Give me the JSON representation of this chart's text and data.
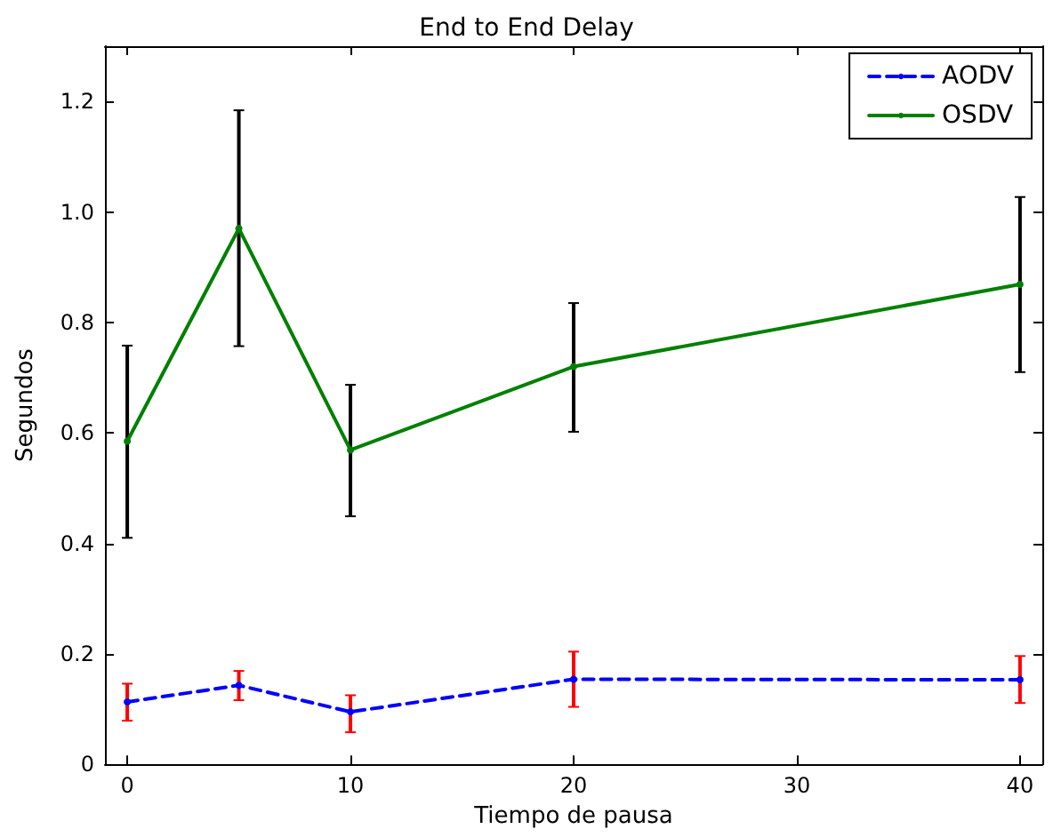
{
  "chart_data": {
    "type": "line",
    "title": "End to End Delay",
    "xlabel": "Tiempo de pausa",
    "ylabel": "Segundos",
    "x": [
      0,
      5,
      10,
      20,
      40
    ],
    "series": [
      {
        "name": "AODV",
        "color": "#0000ff",
        "line_style": "dashed",
        "values": [
          0.113,
          0.143,
          0.095,
          0.154,
          0.153
        ],
        "errors": [
          [
            0.079,
            0.146
          ],
          [
            0.116,
            0.169
          ],
          [
            0.058,
            0.125
          ],
          [
            0.104,
            0.204
          ],
          [
            0.111,
            0.196
          ]
        ]
      },
      {
        "name": "OSDV",
        "color": "#008000",
        "line_style": "solid",
        "values": [
          0.585,
          0.97,
          0.569,
          0.72,
          0.869
        ],
        "errors": [
          [
            0.41,
            0.758
          ],
          [
            0.757,
            1.184
          ],
          [
            0.449,
            0.687
          ],
          [
            0.602,
            0.835
          ],
          [
            0.71,
            1.027
          ]
        ]
      }
    ],
    "xlim": [
      -1,
      41
    ],
    "xticks": [
      0,
      10,
      20,
      30,
      40
    ],
    "ylim": [
      0,
      1.3
    ],
    "yticks": [
      0,
      {
        "value": 0.2,
        "label": "0.2"
      },
      {
        "value": 0.4,
        "label": "0.4"
      },
      {
        "value": 0.6,
        "label": "0.6"
      },
      {
        "value": 0.8,
        "label": "0.8"
      },
      {
        "value": 1.0,
        "label": "1.0"
      },
      {
        "value": 1.2,
        "label": "1.2"
      }
    ],
    "marker": "circle",
    "grid": false,
    "legend": "top right"
  }
}
